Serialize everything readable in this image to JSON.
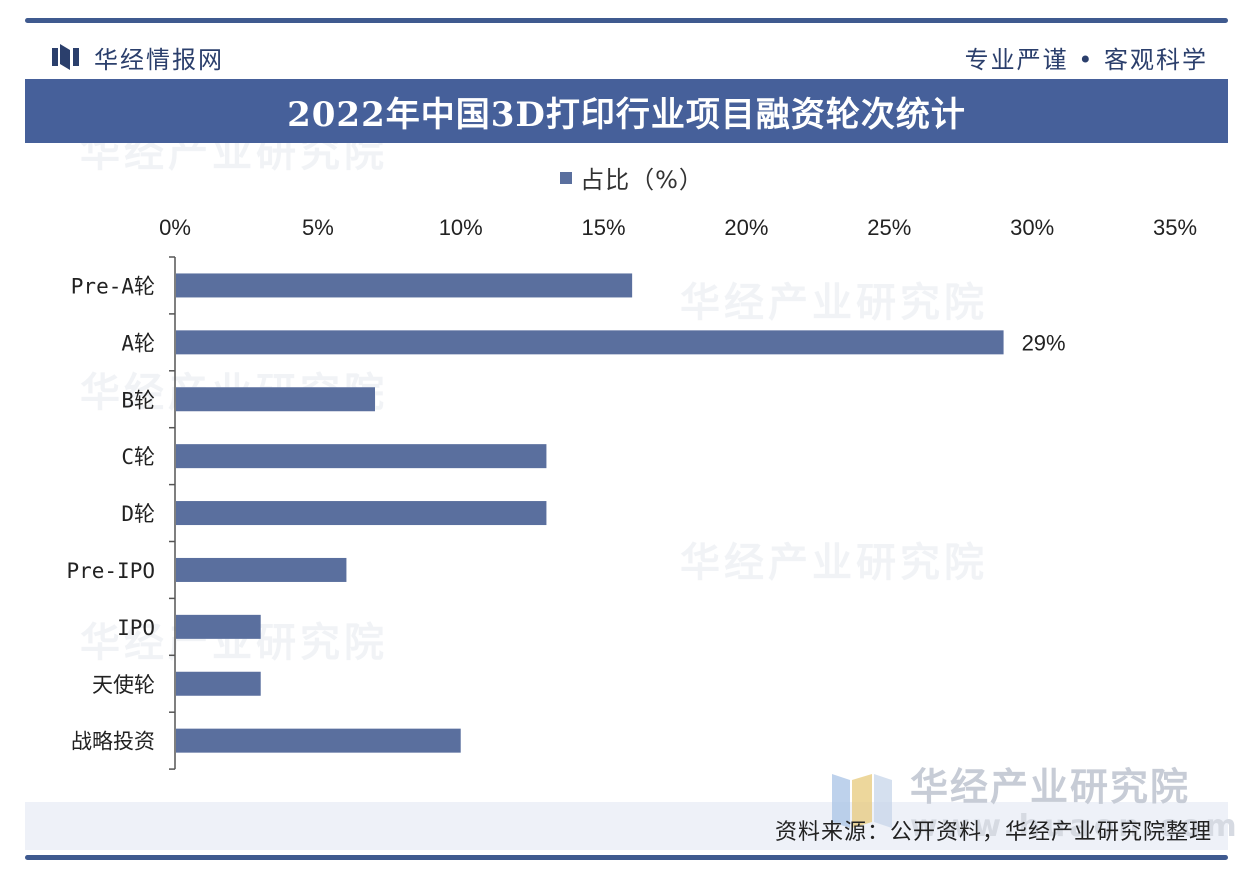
{
  "header": {
    "logo_text": "华经情报网",
    "slogan": "专业严谨 • 客观科学"
  },
  "title": "2022年中国3D打印行业项目融资轮次统计",
  "legend": {
    "label": "占比（%）",
    "color": "#5a6f9e"
  },
  "footer": {
    "source": "资料来源：公开资料，华经产业研究院整理",
    "watermark_brand": "华经产业研究院",
    "watermark_url": "www.huaon.com"
  },
  "colors": {
    "bar": "#5a6f9e",
    "title_bg": "#46609a",
    "frame": "#3f5a8f"
  },
  "chart_data": {
    "type": "bar",
    "orientation": "horizontal",
    "title": "2022年中国3D打印行业项目融资轮次统计",
    "xlim": [
      0,
      35
    ],
    "x_ticks": [
      "0%",
      "5%",
      "10%",
      "15%",
      "20%",
      "25%",
      "30%",
      "35%"
    ],
    "tick_values": [
      0,
      5,
      10,
      15,
      20,
      25,
      30,
      35
    ],
    "categories": [
      "Pre-A轮",
      "A轮",
      "B轮",
      "C轮",
      "D轮",
      "Pre-IPO",
      "IPO",
      "天使轮",
      "战略投资"
    ],
    "series": [
      {
        "name": "占比（%）",
        "values": [
          16,
          29,
          7,
          13,
          13,
          6,
          3,
          3,
          10
        ]
      }
    ],
    "data_labels": [
      {
        "category": "A轮",
        "text": "29%"
      }
    ],
    "legend_position": "top"
  }
}
